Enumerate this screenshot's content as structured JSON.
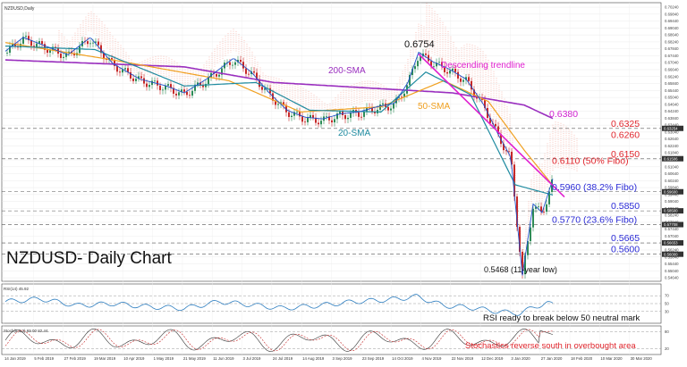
{
  "window": {
    "symbol_label": "NZDUSD,Daily",
    "title": "NZDUSD- Daily Chart",
    "rsi_label": "RSI(14) 45.92",
    "stoch_label": "Stoch(5,3,3) 69.00 82.44"
  },
  "annotations": {
    "peak": "0.6754",
    "low": "0.5468 (11-year low)",
    "descending": "Descending trendline",
    "sma200": "200-SMA",
    "sma50": "50-SMA",
    "sma20": "20-SMA",
    "rsi_note": "RSI ready to break below 50 neutral mark",
    "stoch_note": "Stochastics reverse south in overbought area"
  },
  "levels": [
    {
      "label": "0.6380",
      "value": 0.638,
      "color": "#d020d0",
      "line": false
    },
    {
      "label": "0.6325",
      "value": 0.6325,
      "color": "#e0262d",
      "line": true
    },
    {
      "label": "0.6260",
      "value": 0.626,
      "color": "#e0262d",
      "line": false
    },
    {
      "label": "0.6150",
      "value": 0.615,
      "color": "#e0262d",
      "line": true
    },
    {
      "label": "0.6110 (50% Fibo)",
      "value": 0.611,
      "color": "#e0262d",
      "line": false
    },
    {
      "label": "0.5960 (38.2% Fibo)",
      "value": 0.596,
      "color": "#2b2bd6",
      "line": true
    },
    {
      "label": "0.5850",
      "value": 0.585,
      "color": "#2b2bd6",
      "line": true
    },
    {
      "label": "0.5770 (23.6% Fibo)",
      "value": 0.577,
      "color": "#2b2bd6",
      "line": true
    },
    {
      "label": "0.5665",
      "value": 0.5665,
      "color": "#2b2bd6",
      "line": true
    },
    {
      "label": "0.5600",
      "value": 0.56,
      "color": "#2b2bd6",
      "line": true
    }
  ],
  "price_axis": {
    "ticks": [
      "0.70240",
      "0.69840",
      "0.69440",
      "0.69040",
      "0.68640",
      "0.68240",
      "0.67840",
      "0.67440",
      "0.67040",
      "0.66640",
      "0.66240",
      "0.65840",
      "0.65440",
      "0.65040",
      "0.64640",
      "0.64240",
      "0.63840",
      "0.63440",
      "0.63040",
      "0.62640",
      "0.62240",
      "0.61840",
      "0.61440",
      "0.61040",
      "0.60640",
      "0.60240",
      "0.59840",
      "0.59440",
      "0.59040",
      "0.58640",
      "0.58240",
      "0.57840",
      "0.57440",
      "0.57040",
      "0.56640",
      "0.56240",
      "0.55840",
      "0.55440",
      "0.55040",
      "0.54640"
    ],
    "highlight_labels": [
      "0.63254",
      "0.61506",
      "0.59600",
      "0.58500",
      "0.57708",
      "0.56653",
      "0.56000"
    ]
  },
  "time_axis": [
    "14 Jan 2019",
    "5 Feb 2019",
    "27 Feb 2019",
    "19 Mar 2019",
    "10 Apr 2019",
    "1 May 2019",
    "21 May 2019",
    "11 Jun 2019",
    "3 Jul 2019",
    "24 Jul 2019",
    "14 Aug 2019",
    "3 Sep 2019",
    "23 Sep 2019",
    "14 Oct 2019",
    "4 Nov 2019",
    "22 Nov 2019",
    "12 Dec 2019",
    "3 Jan 2020",
    "27 Jan 2020",
    "18 Feb 2020",
    "10 Mar 2020",
    "30 Mar 2020"
  ],
  "colors": {
    "sma200": "#9a2fbf",
    "sma50": "#f0a020",
    "sma20": "#1f8ba0",
    "sma_fast": "#2050c8",
    "green_line": "#66cc33",
    "cloud": "#f08070",
    "trendline": "#e020d0",
    "candle_up": "#2e8b57",
    "candle_down": "#c62828",
    "rsi": "#2f7fc0"
  },
  "chart_data": {
    "type": "candlestick",
    "title": "NZDUSD- Daily Chart",
    "ylim": [
      0.5444,
      0.705
    ],
    "price_path": [
      [
        0,
        0.676
      ],
      [
        20,
        0.684
      ],
      [
        45,
        0.679
      ],
      [
        70,
        0.674
      ],
      [
        95,
        0.684
      ],
      [
        120,
        0.669
      ],
      [
        150,
        0.66
      ],
      [
        180,
        0.656
      ],
      [
        200,
        0.652
      ],
      [
        225,
        0.66
      ],
      [
        255,
        0.672
      ],
      [
        275,
        0.664
      ],
      [
        295,
        0.652
      ],
      [
        315,
        0.642
      ],
      [
        335,
        0.638
      ],
      [
        355,
        0.637
      ],
      [
        375,
        0.64
      ],
      [
        395,
        0.641
      ],
      [
        415,
        0.644
      ],
      [
        435,
        0.646
      ],
      [
        450,
        0.658
      ],
      [
        462,
        0.6754
      ],
      [
        478,
        0.67
      ],
      [
        495,
        0.666
      ],
      [
        515,
        0.66
      ],
      [
        535,
        0.645
      ],
      [
        552,
        0.627
      ],
      [
        565,
        0.615
      ],
      [
        578,
        0.5468
      ],
      [
        590,
        0.588
      ],
      [
        600,
        0.583
      ],
      [
        613,
        0.604
      ]
    ],
    "sma200": [
      [
        0,
        0.672
      ],
      [
        100,
        0.67
      ],
      [
        200,
        0.668
      ],
      [
        300,
        0.659
      ],
      [
        400,
        0.656
      ],
      [
        500,
        0.653
      ],
      [
        580,
        0.646
      ],
      [
        613,
        0.638
      ]
    ],
    "sma50": [
      [
        0,
        0.682
      ],
      [
        120,
        0.672
      ],
      [
        250,
        0.66
      ],
      [
        330,
        0.642
      ],
      [
        420,
        0.645
      ],
      [
        490,
        0.66
      ],
      [
        540,
        0.648
      ],
      [
        580,
        0.62
      ],
      [
        613,
        0.599
      ]
    ],
    "sma20": [
      [
        0,
        0.68
      ],
      [
        100,
        0.678
      ],
      [
        200,
        0.657
      ],
      [
        280,
        0.659
      ],
      [
        340,
        0.643
      ],
      [
        420,
        0.642
      ],
      [
        470,
        0.665
      ],
      [
        520,
        0.652
      ],
      [
        570,
        0.6
      ],
      [
        613,
        0.594
      ]
    ],
    "trendline": [
      [
        462,
        0.6754
      ],
      [
        625,
        0.593
      ]
    ],
    "rsi_ylim": [
      0,
      100
    ],
    "rsi": [
      [
        0,
        55
      ],
      [
        40,
        62
      ],
      [
        80,
        45
      ],
      [
        120,
        50
      ],
      [
        160,
        42
      ],
      [
        200,
        38
      ],
      [
        240,
        55
      ],
      [
        270,
        48
      ],
      [
        310,
        38
      ],
      [
        350,
        45
      ],
      [
        390,
        55
      ],
      [
        430,
        60
      ],
      [
        460,
        68
      ],
      [
        490,
        45
      ],
      [
        520,
        40
      ],
      [
        550,
        30
      ],
      [
        575,
        25
      ],
      [
        590,
        40
      ],
      [
        605,
        52
      ],
      [
        613,
        46
      ]
    ],
    "stoch_ylim": [
      0,
      100
    ],
    "stoch_k_final": 69.0,
    "stoch_d_final": 82.44
  }
}
